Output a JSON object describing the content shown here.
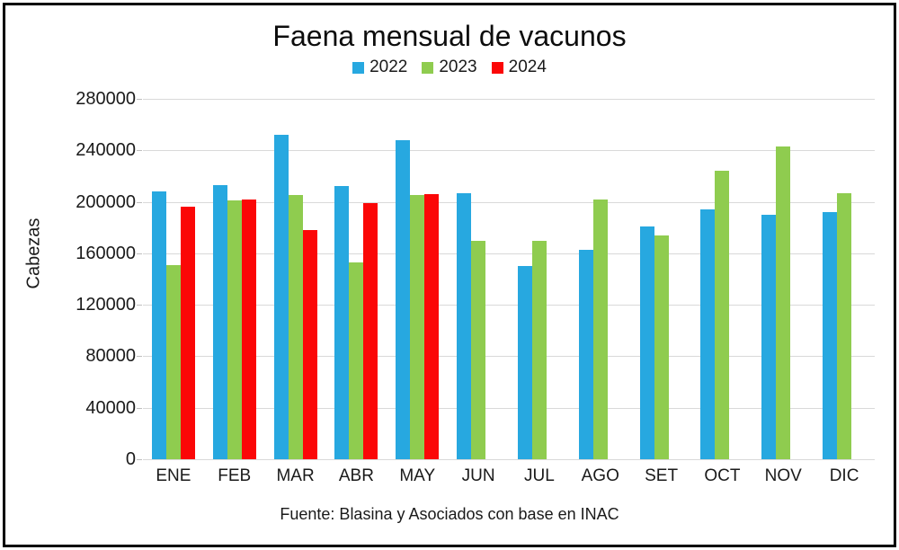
{
  "chart_data": {
    "type": "bar",
    "title": "Faena mensual de vacunos",
    "ylabel": "Cabezas",
    "xlabel": "",
    "footer": "Fuente: Blasina y Asociados con base en INAC",
    "categories": [
      "ENE",
      "FEB",
      "MAR",
      "ABR",
      "MAY",
      "JUN",
      "JUL",
      "AGO",
      "SET",
      "OCT",
      "NOV",
      "DIC"
    ],
    "series": [
      {
        "name": "2022",
        "color": "#27A8E0",
        "values": [
          208000,
          213000,
          252000,
          212000,
          248000,
          207000,
          150000,
          163000,
          181000,
          194000,
          190000,
          192000
        ]
      },
      {
        "name": "2023",
        "color": "#8FCC4F",
        "values": [
          151000,
          201000,
          205000,
          153000,
          205000,
          170000,
          170000,
          202000,
          174000,
          224000,
          243000,
          207000
        ]
      },
      {
        "name": "2024",
        "color": "#FB0707",
        "values": [
          196000,
          202000,
          178000,
          199000,
          206000,
          null,
          null,
          null,
          null,
          null,
          null,
          null
        ]
      }
    ],
    "ylim": [
      0,
      280000
    ],
    "yticks": [
      0,
      40000,
      80000,
      120000,
      160000,
      200000,
      240000,
      280000
    ],
    "grid": true,
    "legend_position": "top",
    "gridline_color": "#d9d9d9"
  }
}
